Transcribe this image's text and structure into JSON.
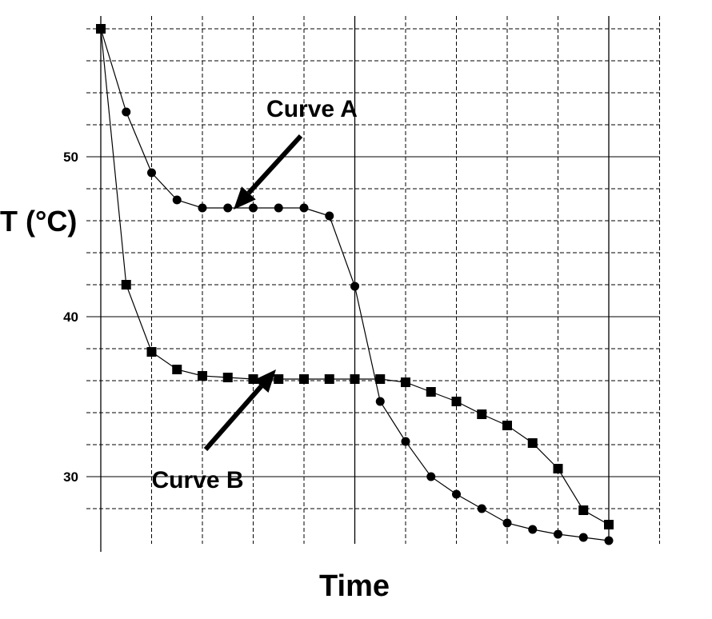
{
  "chart_data": {
    "type": "line",
    "title": "",
    "xlabel": "Time",
    "ylabel": "T (°C)",
    "ylim": [
      25.8,
      58.8
    ],
    "x_ticks_labeled": false,
    "yticks": [
      30,
      40,
      50
    ],
    "grid": true,
    "series": [
      {
        "name": "Curve A",
        "marker": "circle",
        "x": [
          0,
          1,
          2,
          3,
          4,
          5,
          6,
          7,
          8,
          9,
          10,
          11,
          12,
          13,
          14,
          15,
          16,
          17,
          18,
          19,
          20
        ],
        "values": [
          58.0,
          52.8,
          49.0,
          47.3,
          46.8,
          46.8,
          46.8,
          46.8,
          46.8,
          46.3,
          41.9,
          34.7,
          32.2,
          30.0,
          28.9,
          28.0,
          27.1,
          26.7,
          26.4,
          26.2,
          26.0
        ]
      },
      {
        "name": "Curve B",
        "marker": "square",
        "x": [
          0,
          1,
          2,
          3,
          4,
          5,
          6,
          7,
          8,
          9,
          10,
          11,
          12,
          13,
          14,
          15,
          16,
          17,
          18,
          19,
          20
        ],
        "values": [
          58.0,
          42.0,
          37.8,
          36.7,
          36.3,
          36.2,
          36.1,
          36.1,
          36.1,
          36.1,
          36.1,
          36.1,
          35.9,
          35.3,
          34.7,
          33.9,
          33.2,
          32.1,
          30.5,
          27.9,
          27.0
        ]
      }
    ],
    "annotations": [
      "Curve A",
      "Curve B"
    ]
  }
}
